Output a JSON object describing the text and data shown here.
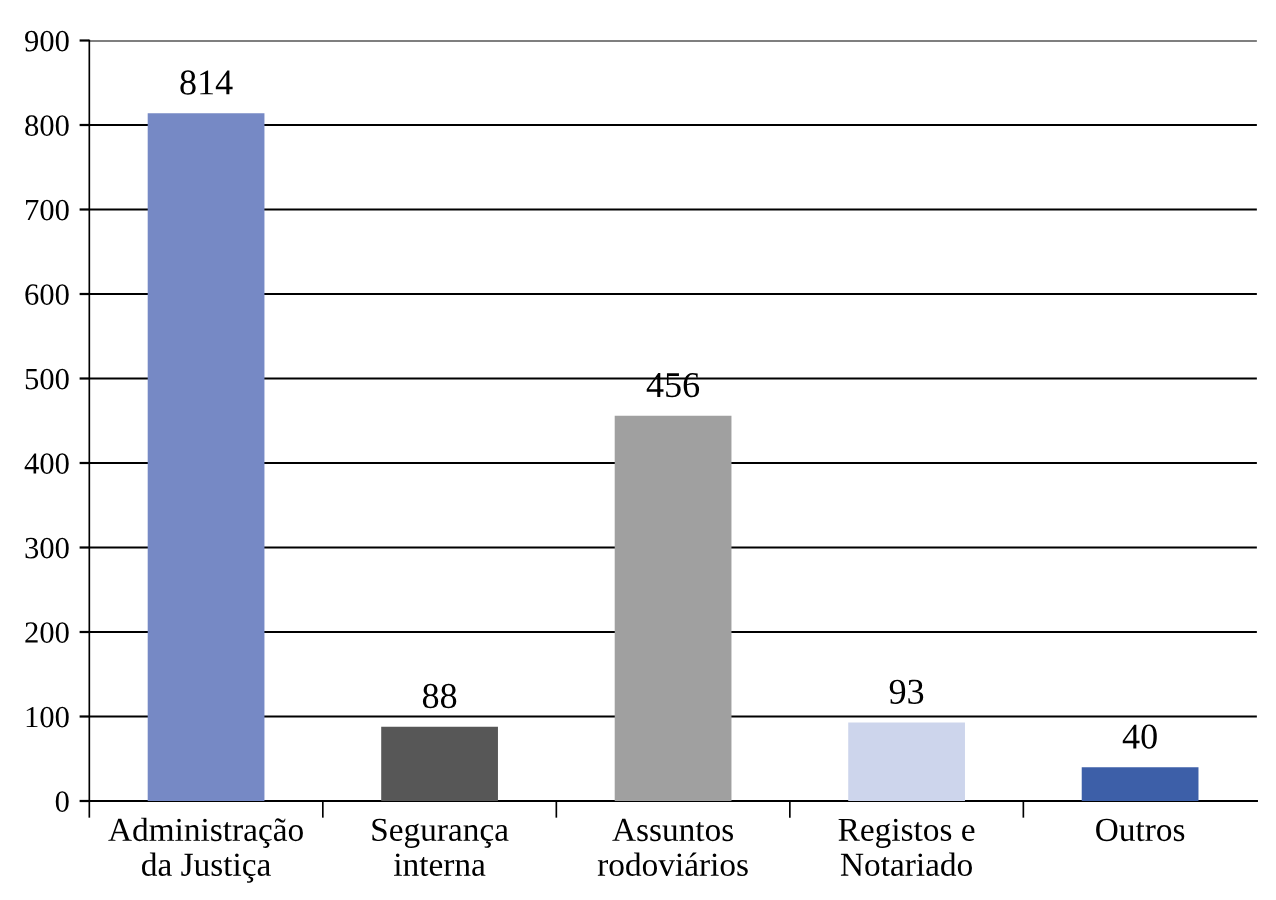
{
  "chart_data": {
    "type": "bar",
    "categories": [
      "Administração\nda Justiça",
      "Segurança\ninterna",
      "Assuntos\nrodoviários",
      "Registos e\nNotariado",
      "Outros"
    ],
    "values": [
      814,
      88,
      456,
      93,
      40
    ],
    "colors": [
      "#7689c5",
      "#575757",
      "#a0a0a0",
      "#cdd5ec",
      "#3d5fa8"
    ],
    "ylim": [
      0,
      900
    ],
    "yticks": [
      0,
      100,
      200,
      300,
      400,
      500,
      600,
      700,
      800,
      900
    ],
    "grid": "y",
    "data_labels": true,
    "legend": false
  }
}
